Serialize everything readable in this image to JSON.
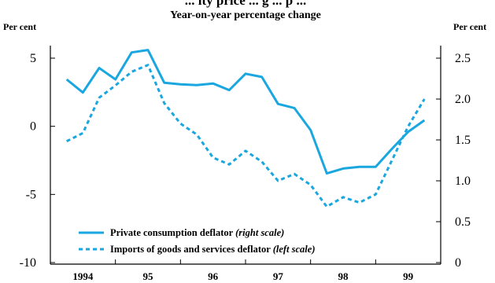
{
  "title": "... ity price ... g ... p ...",
  "subtitle": "Year-on-year percentage change",
  "left_unit": "Per cent",
  "right_unit": "Per cent",
  "chart_data": {
    "type": "line",
    "x_ticks": [
      "1994",
      "95",
      "96",
      "97",
      "98",
      "99"
    ],
    "left_axis": {
      "ylim": [
        -10,
        5
      ],
      "ticks": [
        "5",
        "0",
        "-5",
        "-10"
      ],
      "tick_values": [
        5,
        0,
        -5,
        -10
      ]
    },
    "right_axis": {
      "ylim": [
        0,
        2.5
      ],
      "ticks": [
        "2.5",
        "2.0",
        "1.5",
        "1.0",
        "0.5",
        "0"
      ],
      "tick_values": [
        2.5,
        2.0,
        1.5,
        1.0,
        0.5,
        0
      ]
    },
    "series": [
      {
        "name": "Private consumption deflator",
        "name_note": "(right scale)",
        "axis": "right",
        "style": "solid",
        "color": "#1aa7e0",
        "x": [
          1993.75,
          1994.0,
          1994.25,
          1994.5,
          1994.75,
          1995.0,
          1995.25,
          1995.5,
          1995.75,
          1996.0,
          1996.25,
          1996.5,
          1996.75,
          1997.0,
          1997.25,
          1997.5,
          1997.75,
          1998.0,
          1998.25,
          1998.5,
          1998.75,
          1999.0,
          1999.25
        ],
        "values": [
          2.24,
          2.08,
          2.38,
          2.24,
          2.57,
          2.6,
          2.2,
          2.18,
          2.17,
          2.19,
          2.11,
          2.31,
          2.27,
          1.94,
          1.89,
          1.62,
          1.09,
          1.15,
          1.17,
          1.17,
          1.39,
          1.6,
          1.74
        ]
      },
      {
        "name": "Imports of goods and services deflator",
        "name_note": "(left scale)",
        "axis": "left",
        "style": "dashed",
        "color": "#1aa7e0",
        "x": [
          1993.75,
          1994.0,
          1994.25,
          1994.5,
          1994.75,
          1995.0,
          1995.25,
          1995.5,
          1995.75,
          1996.0,
          1996.25,
          1996.5,
          1996.75,
          1997.0,
          1997.25,
          1997.5,
          1997.75,
          1998.0,
          1998.25,
          1998.5,
          1998.75,
          1999.0,
          1999.25
        ],
        "values": [
          -1.1,
          -0.5,
          2.1,
          3.0,
          4.0,
          4.5,
          1.7,
          0.2,
          -0.6,
          -2.3,
          -2.8,
          -1.8,
          -2.6,
          -4.0,
          -3.5,
          -4.3,
          -5.9,
          -5.2,
          -5.6,
          -5.0,
          -2.5,
          0.0,
          2.0
        ]
      }
    ],
    "legend_position": "bottom-left"
  }
}
